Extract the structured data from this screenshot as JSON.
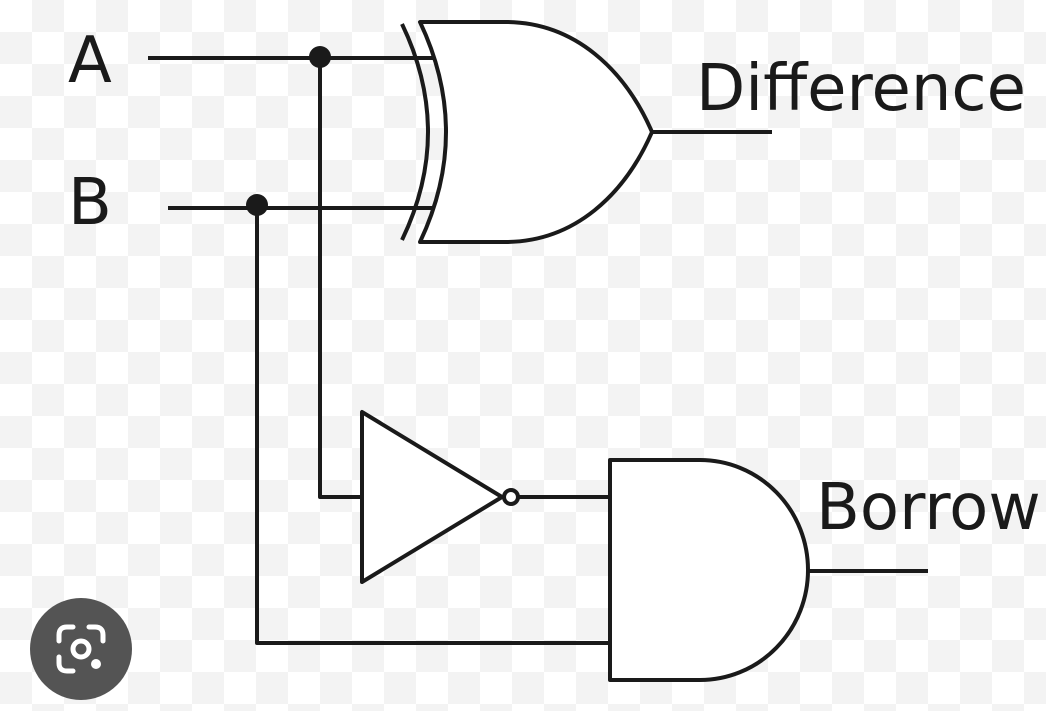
{
  "diagram": {
    "title": "",
    "labels": {
      "input_a": "A",
      "input_b": "B",
      "output_difference": "Difference",
      "output_borrow": "Borrow"
    },
    "gates": [
      {
        "id": "xor",
        "type": "XOR"
      },
      {
        "id": "not",
        "type": "NOT"
      },
      {
        "id": "and",
        "type": "AND"
      }
    ]
  },
  "overlay": {
    "lens_icon": "google-lens-icon"
  }
}
